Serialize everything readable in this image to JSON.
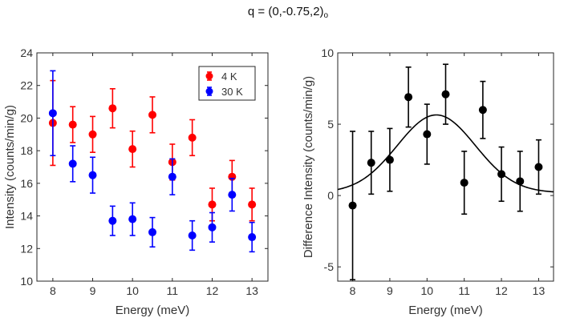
{
  "figure": {
    "title_main": "q = (0,-0.75,2)",
    "title_subscript": "o"
  },
  "chart_data": [
    {
      "type": "scatter",
      "xlabel": "Energy (meV)",
      "ylabel": "Intensity (counts/min/g)",
      "xlim": [
        7.6,
        13.4
      ],
      "ylim": [
        10,
        24
      ],
      "xticks": [
        8,
        9,
        10,
        11,
        12,
        13
      ],
      "yticks": [
        10,
        12,
        14,
        16,
        18,
        20,
        22,
        24
      ],
      "legend_position": "top-right",
      "series": [
        {
          "name": "4 K",
          "color": "#ff0000",
          "x": [
            8,
            8.5,
            9,
            9.5,
            10,
            10.5,
            11,
            11.5,
            12,
            12.5,
            13
          ],
          "y": [
            19.7,
            19.6,
            19.0,
            20.6,
            18.1,
            20.2,
            17.3,
            18.8,
            14.7,
            16.4,
            14.7
          ],
          "err": [
            2.6,
            1.1,
            1.1,
            1.2,
            1.1,
            1.1,
            1.1,
            1.1,
            1.0,
            1.0,
            1.0
          ]
        },
        {
          "name": "30 K",
          "color": "#0000ff",
          "x": [
            8,
            8.5,
            9,
            9.5,
            10,
            10.5,
            11,
            11.5,
            12,
            12.5,
            13
          ],
          "y": [
            20.3,
            17.2,
            16.5,
            13.7,
            13.8,
            13.0,
            16.4,
            12.8,
            13.3,
            15.3,
            12.7
          ],
          "err": [
            2.6,
            1.1,
            1.1,
            0.9,
            1.0,
            0.9,
            1.1,
            0.9,
            0.9,
            1.0,
            0.9
          ]
        }
      ]
    },
    {
      "type": "scatter",
      "xlabel": "Energy (meV)",
      "ylabel": "Difference Intensity (counts/min/g)",
      "xlim": [
        7.6,
        13.4
      ],
      "ylim": [
        -6,
        10
      ],
      "xticks": [
        8,
        9,
        10,
        11,
        12,
        13
      ],
      "yticks": [
        -5,
        0,
        5,
        10
      ],
      "series": [
        {
          "name": "difference",
          "color": "#000000",
          "x": [
            8,
            8.5,
            9,
            9.5,
            10,
            10.5,
            11,
            11.5,
            12,
            12.5,
            13
          ],
          "y": [
            -0.7,
            2.3,
            2.5,
            6.9,
            4.3,
            7.1,
            0.9,
            6.0,
            1.5,
            1.0,
            2.0
          ],
          "err": [
            5.2,
            2.2,
            2.2,
            2.1,
            2.1,
            2.1,
            2.2,
            2.0,
            1.9,
            2.1,
            1.9
          ]
        }
      ],
      "fit": {
        "type": "gaussian",
        "amplitude": 5.45,
        "center": 10.25,
        "sigma": 1.05,
        "offset": 0.2
      }
    }
  ]
}
